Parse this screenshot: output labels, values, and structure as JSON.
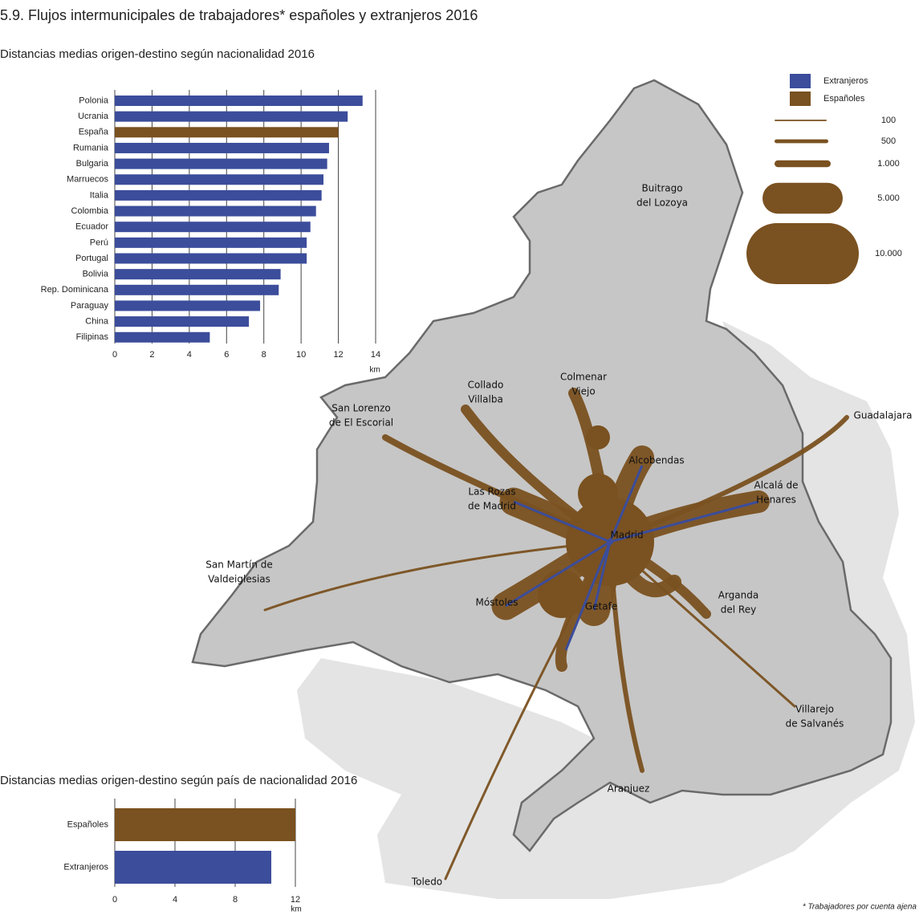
{
  "title": "5.9. Flujos intermunicipales de trabajadores* españoles y extranjeros 2016",
  "chart_data": [
    {
      "type": "bar",
      "orientation": "horizontal",
      "title": "Distancias medias  origen-destino según nacionalidad 2016",
      "categories": [
        "Polonia",
        "Ucrania",
        "España",
        "Rumania",
        "Bulgaria",
        "Marruecos",
        "Italia",
        "Colombia",
        "Ecuador",
        "Perú",
        "Portugal",
        "Bolivia",
        "Rep. Dominicana",
        "Paraguay",
        "China",
        "Filipinas"
      ],
      "values": [
        13.3,
        12.5,
        12.0,
        11.5,
        11.4,
        11.2,
        11.1,
        10.8,
        10.5,
        10.3,
        10.3,
        8.9,
        8.8,
        7.8,
        7.2,
        5.1
      ],
      "colors": [
        "#3b4d9b",
        "#3b4d9b",
        "#7a5120",
        "#3b4d9b",
        "#3b4d9b",
        "#3b4d9b",
        "#3b4d9b",
        "#3b4d9b",
        "#3b4d9b",
        "#3b4d9b",
        "#3b4d9b",
        "#3b4d9b",
        "#3b4d9b",
        "#3b4d9b",
        "#3b4d9b",
        "#3b4d9b"
      ],
      "xlim": [
        0,
        14
      ],
      "xticks": [
        0,
        2,
        4,
        6,
        8,
        10,
        12,
        14
      ],
      "xlabel": "km",
      "grid": true
    },
    {
      "type": "bar",
      "orientation": "horizontal",
      "title": "Distancias medias origen-destino según país de nacionalidad 2016",
      "categories": [
        "Españoles",
        "Extranjeros"
      ],
      "values": [
        12.0,
        10.4
      ],
      "colors": [
        "#7a5120",
        "#3b4d9b"
      ],
      "xlim": [
        0,
        12
      ],
      "xticks": [
        0,
        4,
        8,
        12
      ],
      "xlabel": "km",
      "grid": true
    }
  ],
  "map": {
    "legend": {
      "series": [
        {
          "name": "Extranjeros",
          "color": "#3b4d9b"
        },
        {
          "name": "Españoles",
          "color": "#7a5120"
        }
      ],
      "flow_sizes": [
        100,
        500,
        {
          "value": 1000,
          "label": "1.000"
        },
        {
          "value": 5000,
          "label": "5.000"
        },
        {
          "value": 10000,
          "label": "10.000"
        }
      ]
    },
    "places": [
      [
        "Buitrago",
        "del Lozoya"
      ],
      [
        "Colmenar",
        "Viejo"
      ],
      [
        "Collado",
        "Villalba"
      ],
      [
        "San Lorenzo",
        "de El Escorial"
      ],
      [
        "Alcobendas"
      ],
      [
        "Alcalá de",
        "Henares"
      ],
      [
        "Las Rozas",
        "de Madrid"
      ],
      [
        "Madrid"
      ],
      [
        "Guadalajara"
      ],
      [
        "San Martín de",
        "Valdeiglesias"
      ],
      [
        "Móstoles"
      ],
      [
        "Getafe"
      ],
      [
        "Arganda",
        "del Rey"
      ],
      [
        "Villarejo",
        "de Salvanés"
      ],
      [
        "Aranjuez"
      ],
      [
        "Toledo"
      ]
    ]
  },
  "footnote": "* Trabajadores por cuenta ajena"
}
